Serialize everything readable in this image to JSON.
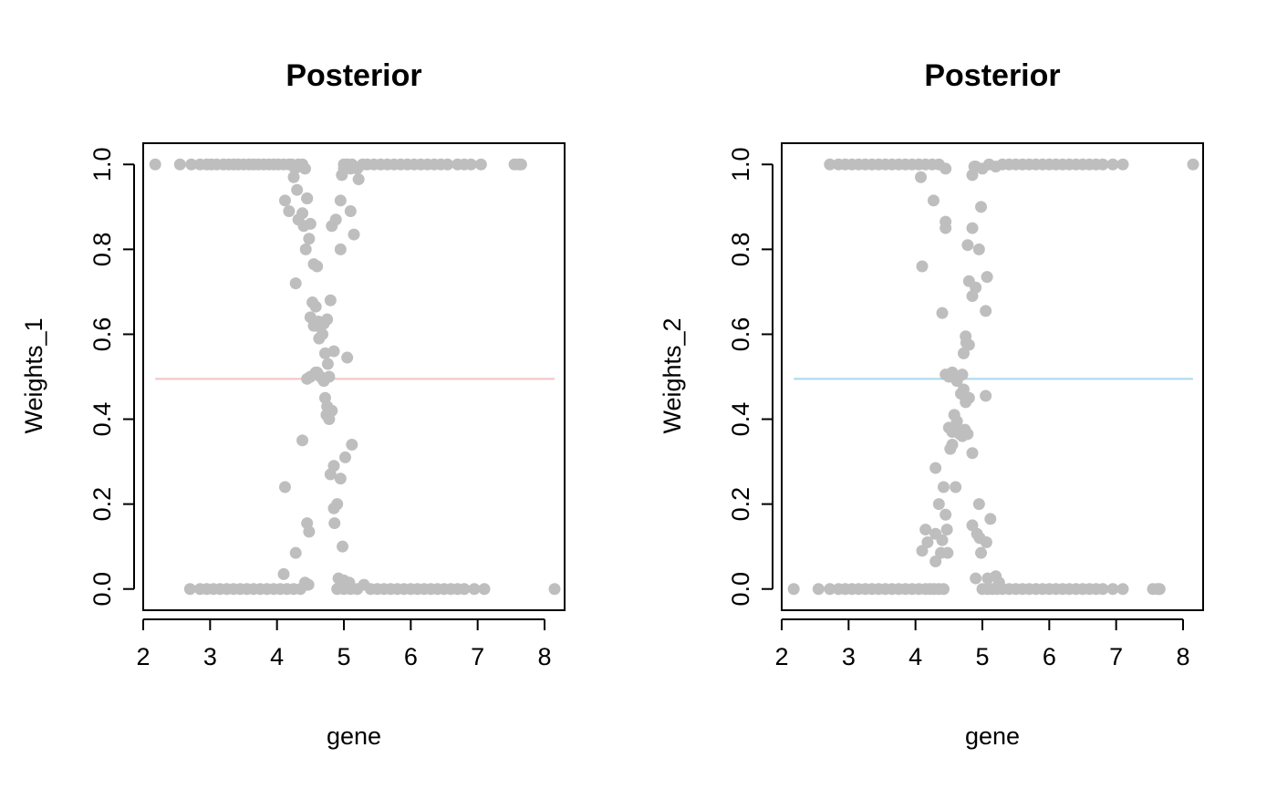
{
  "chart_data": [
    {
      "type": "scatter",
      "title": "Posterior",
      "xlabel": "gene",
      "ylabel": "Weights_1",
      "xlim": [
        2.0,
        8.3
      ],
      "ylim": [
        -0.05,
        1.05
      ],
      "xticks": [
        2,
        3,
        4,
        5,
        6,
        7,
        8
      ],
      "yticks": [
        0.0,
        0.2,
        0.4,
        0.6,
        0.8,
        1.0
      ],
      "xtick_labels": [
        "2",
        "3",
        "4",
        "5",
        "6",
        "7",
        "8"
      ],
      "ytick_labels": [
        "0.0",
        "0.2",
        "0.4",
        "0.6",
        "0.8",
        "1.0"
      ],
      "grid": false,
      "point_color": "#BEBEBE",
      "reference_line": {
        "y": 0.495,
        "x_range": [
          2.18,
          8.15
        ],
        "color": "#F4C2C2"
      },
      "points": {
        "x": [
          2.18,
          2.55,
          2.72,
          2.85,
          2.95,
          3.02,
          3.1,
          3.2,
          3.28,
          3.35,
          3.42,
          3.5,
          3.58,
          3.65,
          3.72,
          3.8,
          3.88,
          3.95,
          4.02,
          4.1,
          4.18,
          4.22,
          4.27,
          4.32,
          4.38,
          4.42,
          5.0,
          5.05,
          5.12,
          5.2,
          5.28,
          5.35,
          5.45,
          5.55,
          5.65,
          5.75,
          5.85,
          5.95,
          6.05,
          6.15,
          6.25,
          6.35,
          6.45,
          6.55,
          6.7,
          6.8,
          6.9,
          7.05,
          7.55,
          7.62,
          7.65,
          2.7,
          2.85,
          2.95,
          3.05,
          3.15,
          3.25,
          3.35,
          3.45,
          3.55,
          3.65,
          3.75,
          3.85,
          3.95,
          4.05,
          4.15,
          4.25,
          4.35,
          4.45,
          4.9,
          5.0,
          5.1,
          5.2,
          5.3,
          5.4,
          5.5,
          5.6,
          5.7,
          5.8,
          5.9,
          6.0,
          6.1,
          6.2,
          6.3,
          6.4,
          6.5,
          6.6,
          6.7,
          6.8,
          6.95,
          7.1,
          8.15,
          4.3,
          4.45,
          4.25,
          4.5,
          4.97,
          5.0,
          5.1,
          5.22,
          4.12,
          4.18,
          4.32,
          4.38,
          4.43,
          4.28,
          4.4,
          4.48,
          4.55,
          4.6,
          4.45,
          4.82,
          4.88,
          4.95,
          5.1,
          4.95,
          5.15,
          4.53,
          4.58,
          4.5,
          4.55,
          4.62,
          4.68,
          4.75,
          4.8,
          4.58,
          4.63,
          4.7,
          4.72,
          4.76,
          4.6,
          4.7,
          4.78,
          4.45,
          4.5,
          4.58,
          4.65,
          4.72,
          4.75,
          4.74,
          4.78,
          4.82,
          4.85,
          5.05,
          5.12,
          5.02,
          4.38,
          4.12,
          4.8,
          4.85,
          4.95,
          4.9,
          4.45,
          4.48,
          4.98,
          4.85,
          4.28,
          4.1,
          4.42,
          4.47,
          4.86,
          4.92,
          5.0,
          5.08
        ],
        "y": [
          1.0,
          1.0,
          1.0,
          1.0,
          1.0,
          1.0,
          1.0,
          1.0,
          1.0,
          1.0,
          1.0,
          1.0,
          1.0,
          1.0,
          1.0,
          1.0,
          1.0,
          1.0,
          1.0,
          1.0,
          1.0,
          1.0,
          0.99,
          1.0,
          1.0,
          0.99,
          1.0,
          1.0,
          1.0,
          0.99,
          1.0,
          1.0,
          1.0,
          1.0,
          1.0,
          1.0,
          1.0,
          1.0,
          1.0,
          1.0,
          1.0,
          1.0,
          1.0,
          1.0,
          1.0,
          1.0,
          1.0,
          1.0,
          1.0,
          1.0,
          1.0,
          0.0,
          0.0,
          0.0,
          0.0,
          0.0,
          0.0,
          0.0,
          0.0,
          0.0,
          0.0,
          0.0,
          0.0,
          0.0,
          0.0,
          0.0,
          0.0,
          0.0,
          0.01,
          0.0,
          0.0,
          0.0,
          0.0,
          0.01,
          0.0,
          0.0,
          0.0,
          0.0,
          0.0,
          0.0,
          0.0,
          0.0,
          0.0,
          0.0,
          0.0,
          0.0,
          0.0,
          0.0,
          0.0,
          0.0,
          0.0,
          0.0,
          0.94,
          0.92,
          0.97,
          0.86,
          0.975,
          0.99,
          0.99,
          0.965,
          0.915,
          0.89,
          0.87,
          0.885,
          0.8,
          0.72,
          0.855,
          0.825,
          0.765,
          0.76,
          0.92,
          0.855,
          0.87,
          0.915,
          0.89,
          0.8,
          0.835,
          0.675,
          0.665,
          0.64,
          0.62,
          0.63,
          0.6,
          0.635,
          0.68,
          0.62,
          0.59,
          0.625,
          0.555,
          0.53,
          0.51,
          0.49,
          0.5,
          0.495,
          0.5,
          0.51,
          0.5,
          0.45,
          0.43,
          0.41,
          0.4,
          0.42,
          0.56,
          0.545,
          0.34,
          0.31,
          0.35,
          0.24,
          0.27,
          0.29,
          0.26,
          0.2,
          0.155,
          0.135,
          0.1,
          0.19,
          0.085,
          0.035,
          0.015,
          0.01,
          0.155,
          0.025,
          0.02,
          0.015
        ]
      }
    },
    {
      "type": "scatter",
      "title": "Posterior",
      "xlabel": "gene",
      "ylabel": "Weights_2",
      "xlim": [
        2.0,
        8.3
      ],
      "ylim": [
        -0.05,
        1.05
      ],
      "xticks": [
        2,
        3,
        4,
        5,
        6,
        7,
        8
      ],
      "yticks": [
        0.0,
        0.2,
        0.4,
        0.6,
        0.8,
        1.0
      ],
      "xtick_labels": [
        "2",
        "3",
        "4",
        "5",
        "6",
        "7",
        "8"
      ],
      "ytick_labels": [
        "0.0",
        "0.2",
        "0.4",
        "0.6",
        "0.8",
        "1.0"
      ],
      "grid": false,
      "point_color": "#BEBEBE",
      "reference_line": {
        "y": 0.495,
        "x_range": [
          2.18,
          8.15
        ],
        "color": "#A8D8EE"
      },
      "points": {
        "x": [
          2.72,
          2.85,
          2.95,
          3.05,
          3.15,
          3.25,
          3.35,
          3.45,
          3.55,
          3.65,
          3.75,
          3.85,
          3.95,
          4.05,
          4.15,
          4.25,
          4.35,
          4.45,
          4.9,
          5.0,
          5.1,
          5.2,
          5.3,
          5.4,
          5.5,
          5.6,
          5.7,
          5.8,
          5.9,
          6.0,
          6.1,
          6.2,
          6.3,
          6.4,
          6.5,
          6.6,
          6.7,
          6.8,
          6.95,
          7.1,
          8.15,
          2.18,
          2.55,
          2.72,
          2.85,
          2.95,
          3.05,
          3.15,
          3.25,
          3.35,
          3.45,
          3.55,
          3.65,
          3.75,
          3.85,
          3.95,
          4.05,
          4.15,
          4.22,
          4.28,
          4.35,
          4.42,
          5.0,
          5.08,
          5.15,
          5.22,
          5.3,
          5.4,
          5.5,
          5.6,
          5.7,
          5.8,
          5.9,
          6.0,
          6.1,
          6.2,
          6.3,
          6.4,
          6.5,
          6.6,
          6.7,
          6.8,
          6.95,
          7.1,
          7.55,
          7.62,
          7.65,
          4.08,
          4.27,
          4.45,
          4.45,
          4.1,
          4.85,
          4.95,
          4.98,
          4.78,
          4.85,
          4.88,
          4.8,
          4.85,
          4.9,
          4.8,
          5.07,
          5.05,
          4.4,
          4.75,
          4.72,
          4.76,
          4.45,
          4.5,
          4.55,
          4.62,
          4.7,
          4.72,
          4.68,
          4.75,
          4.8,
          4.58,
          4.62,
          4.5,
          4.55,
          4.6,
          4.66,
          4.72,
          4.7,
          4.74,
          4.78,
          4.85,
          4.55,
          4.52,
          4.6,
          5.05,
          4.3,
          4.42,
          4.35,
          4.45,
          4.15,
          4.3,
          4.4,
          4.47,
          4.85,
          4.92,
          4.96,
          5.06,
          5.12,
          4.1,
          4.18,
          4.38,
          4.48,
          4.3,
          4.98,
          5.08,
          5.2,
          5.25,
          4.95,
          4.9
        ],
        "y": [
          1.0,
          1.0,
          1.0,
          1.0,
          1.0,
          1.0,
          1.0,
          1.0,
          1.0,
          1.0,
          1.0,
          1.0,
          1.0,
          1.0,
          1.0,
          1.0,
          1.0,
          0.99,
          0.995,
          0.99,
          1.0,
          0.995,
          1.0,
          1.0,
          1.0,
          1.0,
          1.0,
          1.0,
          1.0,
          1.0,
          1.0,
          1.0,
          1.0,
          1.0,
          1.0,
          1.0,
          1.0,
          1.0,
          1.0,
          1.0,
          1.0,
          0.0,
          0.0,
          0.0,
          0.0,
          0.0,
          0.0,
          0.0,
          0.0,
          0.0,
          0.0,
          0.0,
          0.0,
          0.0,
          0.0,
          0.0,
          0.0,
          0.0,
          0.0,
          0.0,
          0.0,
          0.0,
          0.0,
          0.0,
          0.0,
          0.0,
          0.0,
          0.0,
          0.0,
          0.0,
          0.0,
          0.0,
          0.0,
          0.0,
          0.0,
          0.0,
          0.0,
          0.0,
          0.0,
          0.0,
          0.0,
          0.0,
          0.0,
          0.0,
          0.0,
          0.0,
          0.0,
          0.97,
          0.915,
          0.865,
          0.85,
          0.76,
          0.85,
          0.8,
          0.9,
          0.81,
          0.975,
          0.995,
          0.725,
          0.69,
          0.71,
          0.575,
          0.735,
          0.655,
          0.65,
          0.595,
          0.555,
          0.58,
          0.505,
          0.5,
          0.51,
          0.49,
          0.505,
          0.47,
          0.46,
          0.44,
          0.45,
          0.41,
          0.395,
          0.38,
          0.37,
          0.375,
          0.365,
          0.37,
          0.36,
          0.375,
          0.365,
          0.32,
          0.34,
          0.33,
          0.24,
          0.455,
          0.285,
          0.24,
          0.2,
          0.175,
          0.14,
          0.13,
          0.115,
          0.14,
          0.15,
          0.13,
          0.12,
          0.11,
          0.165,
          0.09,
          0.11,
          0.085,
          0.085,
          0.065,
          0.085,
          0.025,
          0.03,
          0.015,
          0.2,
          0.025
        ]
      }
    }
  ]
}
